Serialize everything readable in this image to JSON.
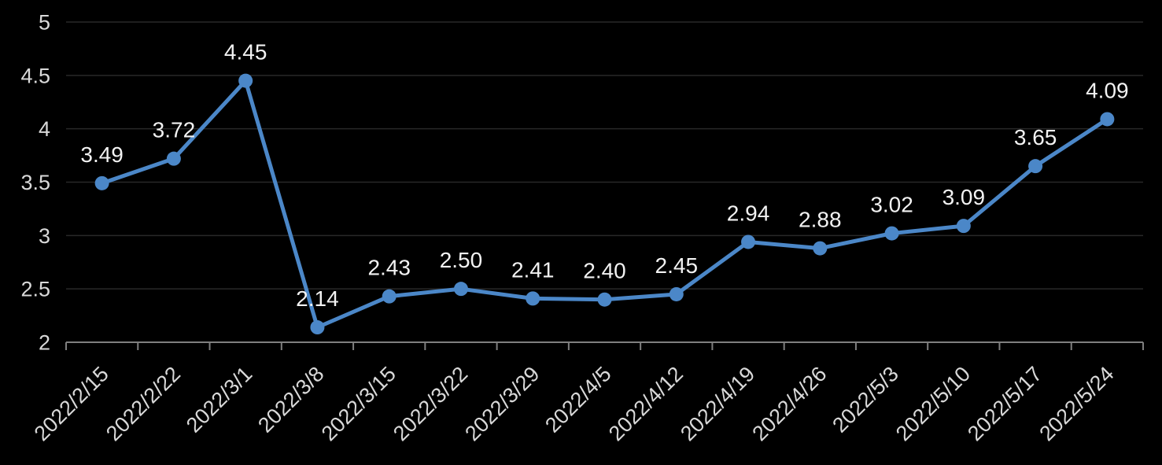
{
  "chart_data": {
    "type": "line",
    "title": "",
    "xlabel": "",
    "ylabel": "",
    "legend": "none",
    "grid": true,
    "categories": [
      "2022/2/15",
      "2022/2/22",
      "2022/3/1",
      "2022/3/8",
      "2022/3/15",
      "2022/3/22",
      "2022/3/29",
      "2022/4/5",
      "2022/4/12",
      "2022/4/19",
      "2022/4/26",
      "2022/5/3",
      "2022/5/10",
      "2022/5/17",
      "2022/5/24"
    ],
    "values": [
      3.49,
      3.72,
      4.45,
      2.14,
      2.43,
      2.5,
      2.41,
      2.4,
      2.45,
      2.94,
      2.88,
      3.02,
      3.09,
      3.65,
      4.09
    ],
    "data_labels": [
      "3.49",
      "3.72",
      "4.45",
      "2.14",
      "2.43",
      "2.50",
      "2.41",
      "2.40",
      "2.45",
      "2.94",
      "2.88",
      "3.02",
      "3.09",
      "3.65",
      "4.09"
    ],
    "ylim": [
      2,
      5
    ],
    "ytick_values": [
      5,
      4.5,
      4,
      3.5,
      3,
      2.5,
      2
    ],
    "ytick_labels": [
      "5",
      "4.5",
      "4",
      "3.5",
      "3",
      "2.5",
      "2"
    ],
    "x_label_rotation_deg": -45,
    "marker": "circle",
    "colors": {
      "background": "#000000",
      "series_line": "#4B87C8",
      "marker_fill": "#4B87C8",
      "gridline": "#282828",
      "axis_line": "#7F7F7F",
      "axis_text": "#D9D9D9",
      "data_label_text": "#F2F2F2"
    }
  }
}
